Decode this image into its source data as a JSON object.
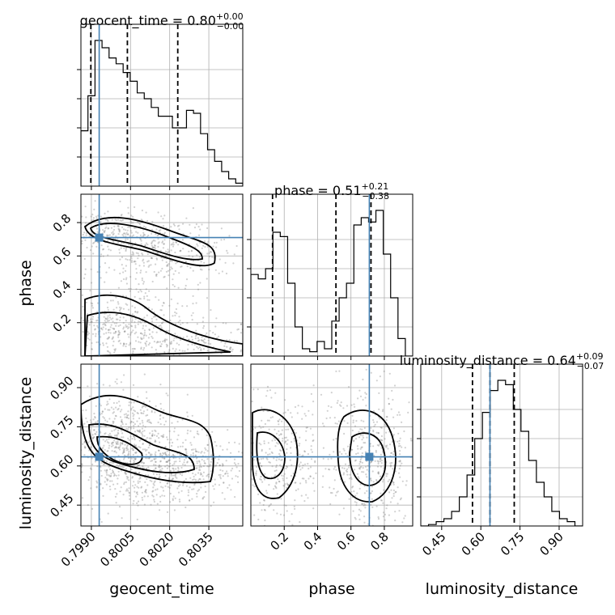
{
  "chart_data": {
    "type": "corner",
    "parameters": [
      "geocent_time",
      "phase",
      "luminosity_distance"
    ],
    "truth": {
      "geocent_time": 0.7993,
      "phase": 0.71,
      "luminosity_distance": 0.635
    },
    "titles": [
      {
        "text": "geocent_time = 0.80",
        "plus": "+0.00",
        "minus": "−0.00"
      },
      {
        "text": "phase = 0.51",
        "plus": "+0.21",
        "minus": "−0.38"
      },
      {
        "text": "luminosity_distance = 0.64",
        "plus": "+0.09",
        "minus": "−0.07"
      }
    ],
    "axis_labels": {
      "geocent_time": "geocent_time",
      "phase": "phase",
      "luminosity_distance": "luminosity_distance"
    },
    "ranges": {
      "geocent_time": [
        0.7986,
        0.8048
      ],
      "phase": [
        0.0,
        0.97
      ],
      "luminosity_distance": [
        0.37,
        0.99
      ]
    },
    "ticks": {
      "geocent_time": [
        0.799,
        0.8005,
        0.802,
        0.8035
      ],
      "phase": [
        0.2,
        0.4,
        0.6,
        0.8
      ],
      "luminosity_distance": [
        0.45,
        0.6,
        0.75,
        0.9
      ]
    },
    "tick_labels": {
      "geocent_time": [
        "0.7990",
        "0.8005",
        "0.8020",
        "0.8035"
      ],
      "phase": [
        "0.2",
        "0.4",
        "0.6",
        "0.8"
      ],
      "luminosity_distance": [
        "0.45",
        "0.60",
        "0.75",
        "0.90"
      ]
    },
    "quantiles": {
      "geocent_time": [
        0.79898,
        0.80038,
        0.80231
      ],
      "phase": [
        0.13,
        0.51,
        0.72
      ],
      "luminosity_distance": [
        0.568,
        0.635,
        0.728
      ]
    },
    "histograms": {
      "geocent_time": [
        0.38,
        0.62,
        1.0,
        0.95,
        0.88,
        0.84,
        0.78,
        0.72,
        0.64,
        0.6,
        0.54,
        0.48,
        0.48,
        0.4,
        0.4,
        0.52,
        0.5,
        0.36,
        0.25,
        0.17,
        0.1,
        0.05,
        0.02
      ],
      "phase": [
        0.56,
        0.53,
        0.6,
        0.85,
        0.82,
        0.5,
        0.2,
        0.05,
        0.03,
        0.1,
        0.05,
        0.24,
        0.4,
        0.5,
        0.9,
        0.95,
        0.92,
        1.0,
        0.7,
        0.4,
        0.12,
        0.0
      ],
      "luminosity_distance": [
        0.0,
        0.01,
        0.03,
        0.05,
        0.1,
        0.2,
        0.35,
        0.6,
        0.78,
        0.93,
        1.0,
        0.97,
        0.8,
        0.65,
        0.45,
        0.3,
        0.2,
        0.1,
        0.05,
        0.03,
        0.0
      ]
    },
    "grid": true,
    "truth_color": "#4682b4"
  }
}
